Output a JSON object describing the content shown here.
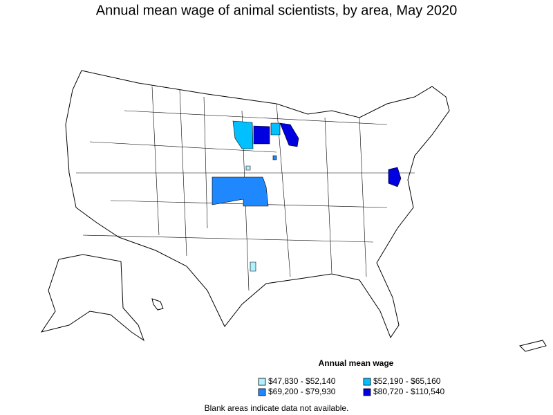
{
  "title": "Annual mean wage of animal scientists, by area, May 2020",
  "legend": {
    "title": "Annual mean wage",
    "items": [
      {
        "label": "$47,830 - $52,140",
        "color": "#b0f0ff"
      },
      {
        "label": "$52,190 - $65,160",
        "color": "#00c0ff"
      },
      {
        "label": "$69,200 - $79,930",
        "color": "#2088ff"
      },
      {
        "label": "$80,720 - $110,540",
        "color": "#0000e0"
      }
    ]
  },
  "note": "Blank areas indicate data not available."
}
